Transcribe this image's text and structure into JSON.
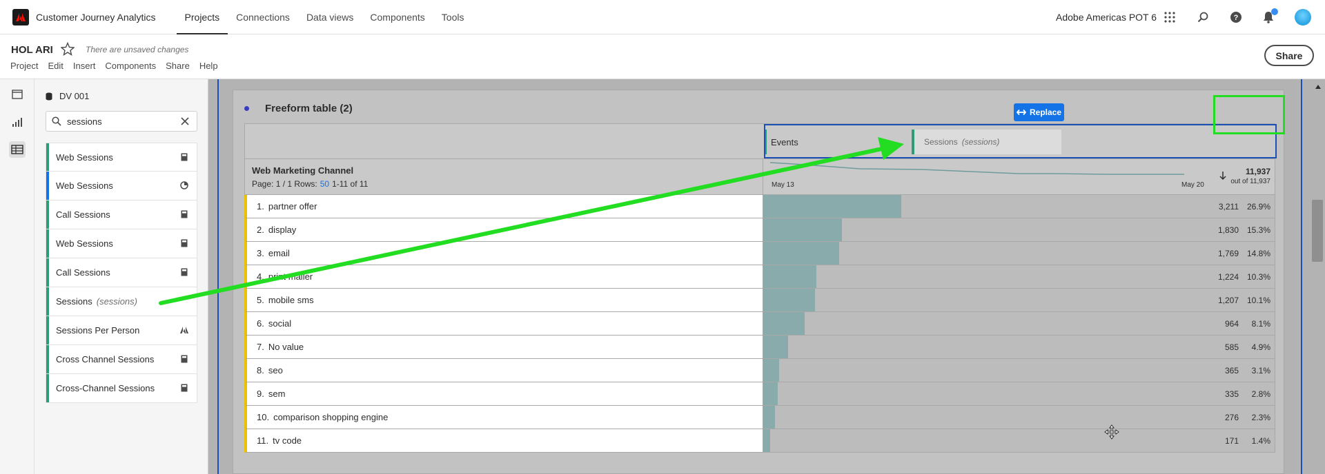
{
  "topnav": {
    "app_title": "Customer Journey Analytics",
    "links": [
      {
        "label": "Projects",
        "active": true
      },
      {
        "label": "Connections"
      },
      {
        "label": "Data views"
      },
      {
        "label": "Components"
      },
      {
        "label": "Tools"
      }
    ],
    "org": "Adobe Americas POT 6",
    "icons": [
      "apps-grid-icon",
      "search-icon",
      "help-icon",
      "bell-icon",
      "avatar"
    ]
  },
  "project": {
    "name": "HOL ARI",
    "unsaved": "There are unsaved changes",
    "menu": [
      "Project",
      "Edit",
      "Insert",
      "Components",
      "Share",
      "Help"
    ],
    "share_label": "Share"
  },
  "components_panel": {
    "data_view": "DV 001",
    "search_value": "sessions",
    "items": [
      {
        "label": "Web Sessions",
        "sub": "",
        "color": "#2d9d78",
        "icon": "calculator-icon"
      },
      {
        "label": "Web Sessions",
        "sub": "",
        "color": "#1473e6",
        "icon": "segment-icon"
      },
      {
        "label": "Call Sessions",
        "sub": "",
        "color": "#2d9d78",
        "icon": "calculator-icon"
      },
      {
        "label": "Web Sessions",
        "sub": "",
        "color": "#2d9d78",
        "icon": "calculator-icon"
      },
      {
        "label": "Call Sessions",
        "sub": "",
        "color": "#2d9d78",
        "icon": "calculator-icon"
      },
      {
        "label": "Sessions",
        "sub": "(sessions)",
        "color": "#2d9d78",
        "icon": ""
      },
      {
        "label": "Sessions Per Person",
        "sub": "",
        "color": "#2d9d78",
        "icon": "adobe-icon"
      },
      {
        "label": "Cross Channel Sessions",
        "sub": "",
        "color": "#2d9d78",
        "icon": "calculator-icon"
      },
      {
        "label": "Cross-Channel Sessions",
        "sub": "",
        "color": "#2d9d78",
        "icon": "calculator-icon"
      }
    ]
  },
  "freeform": {
    "title": "Freeform table (2)",
    "column_events": "Events",
    "drag_chip": {
      "label": "Sessions",
      "sub": "(sessions)"
    },
    "replace_label": "Replace",
    "dimension": "Web Marketing Channel",
    "page_text": "Page: 1 / 1",
    "rows_label": "Rows:",
    "rows_value": "50",
    "range_text": "1-11 of 11",
    "date_start": "May 13",
    "date_end": "May 20",
    "total": "11,937",
    "out_of": "out of 11,937",
    "rows": [
      {
        "num": "1.",
        "label": "partner offer",
        "value": "3,211",
        "pct": "26.9%",
        "share": 0.269
      },
      {
        "num": "2.",
        "label": "display",
        "value": "1,830",
        "pct": "15.3%",
        "share": 0.153
      },
      {
        "num": "3.",
        "label": "email",
        "value": "1,769",
        "pct": "14.8%",
        "share": 0.148
      },
      {
        "num": "4.",
        "label": "print mailer",
        "value": "1,224",
        "pct": "10.3%",
        "share": 0.103
      },
      {
        "num": "5.",
        "label": "mobile sms",
        "value": "1,207",
        "pct": "10.1%",
        "share": 0.101
      },
      {
        "num": "6.",
        "label": "social",
        "value": "964",
        "pct": "8.1%",
        "share": 0.081
      },
      {
        "num": "7.",
        "label": "No value",
        "value": "585",
        "pct": "4.9%",
        "share": 0.049
      },
      {
        "num": "8.",
        "label": "seo",
        "value": "365",
        "pct": "3.1%",
        "share": 0.031
      },
      {
        "num": "9.",
        "label": "sem",
        "value": "335",
        "pct": "2.8%",
        "share": 0.028
      },
      {
        "num": "10.",
        "label": "comparison shopping engine",
        "value": "276",
        "pct": "2.3%",
        "share": 0.023
      },
      {
        "num": "11.",
        "label": "tv code",
        "value": "171",
        "pct": "1.4%",
        "share": 0.014
      }
    ]
  }
}
